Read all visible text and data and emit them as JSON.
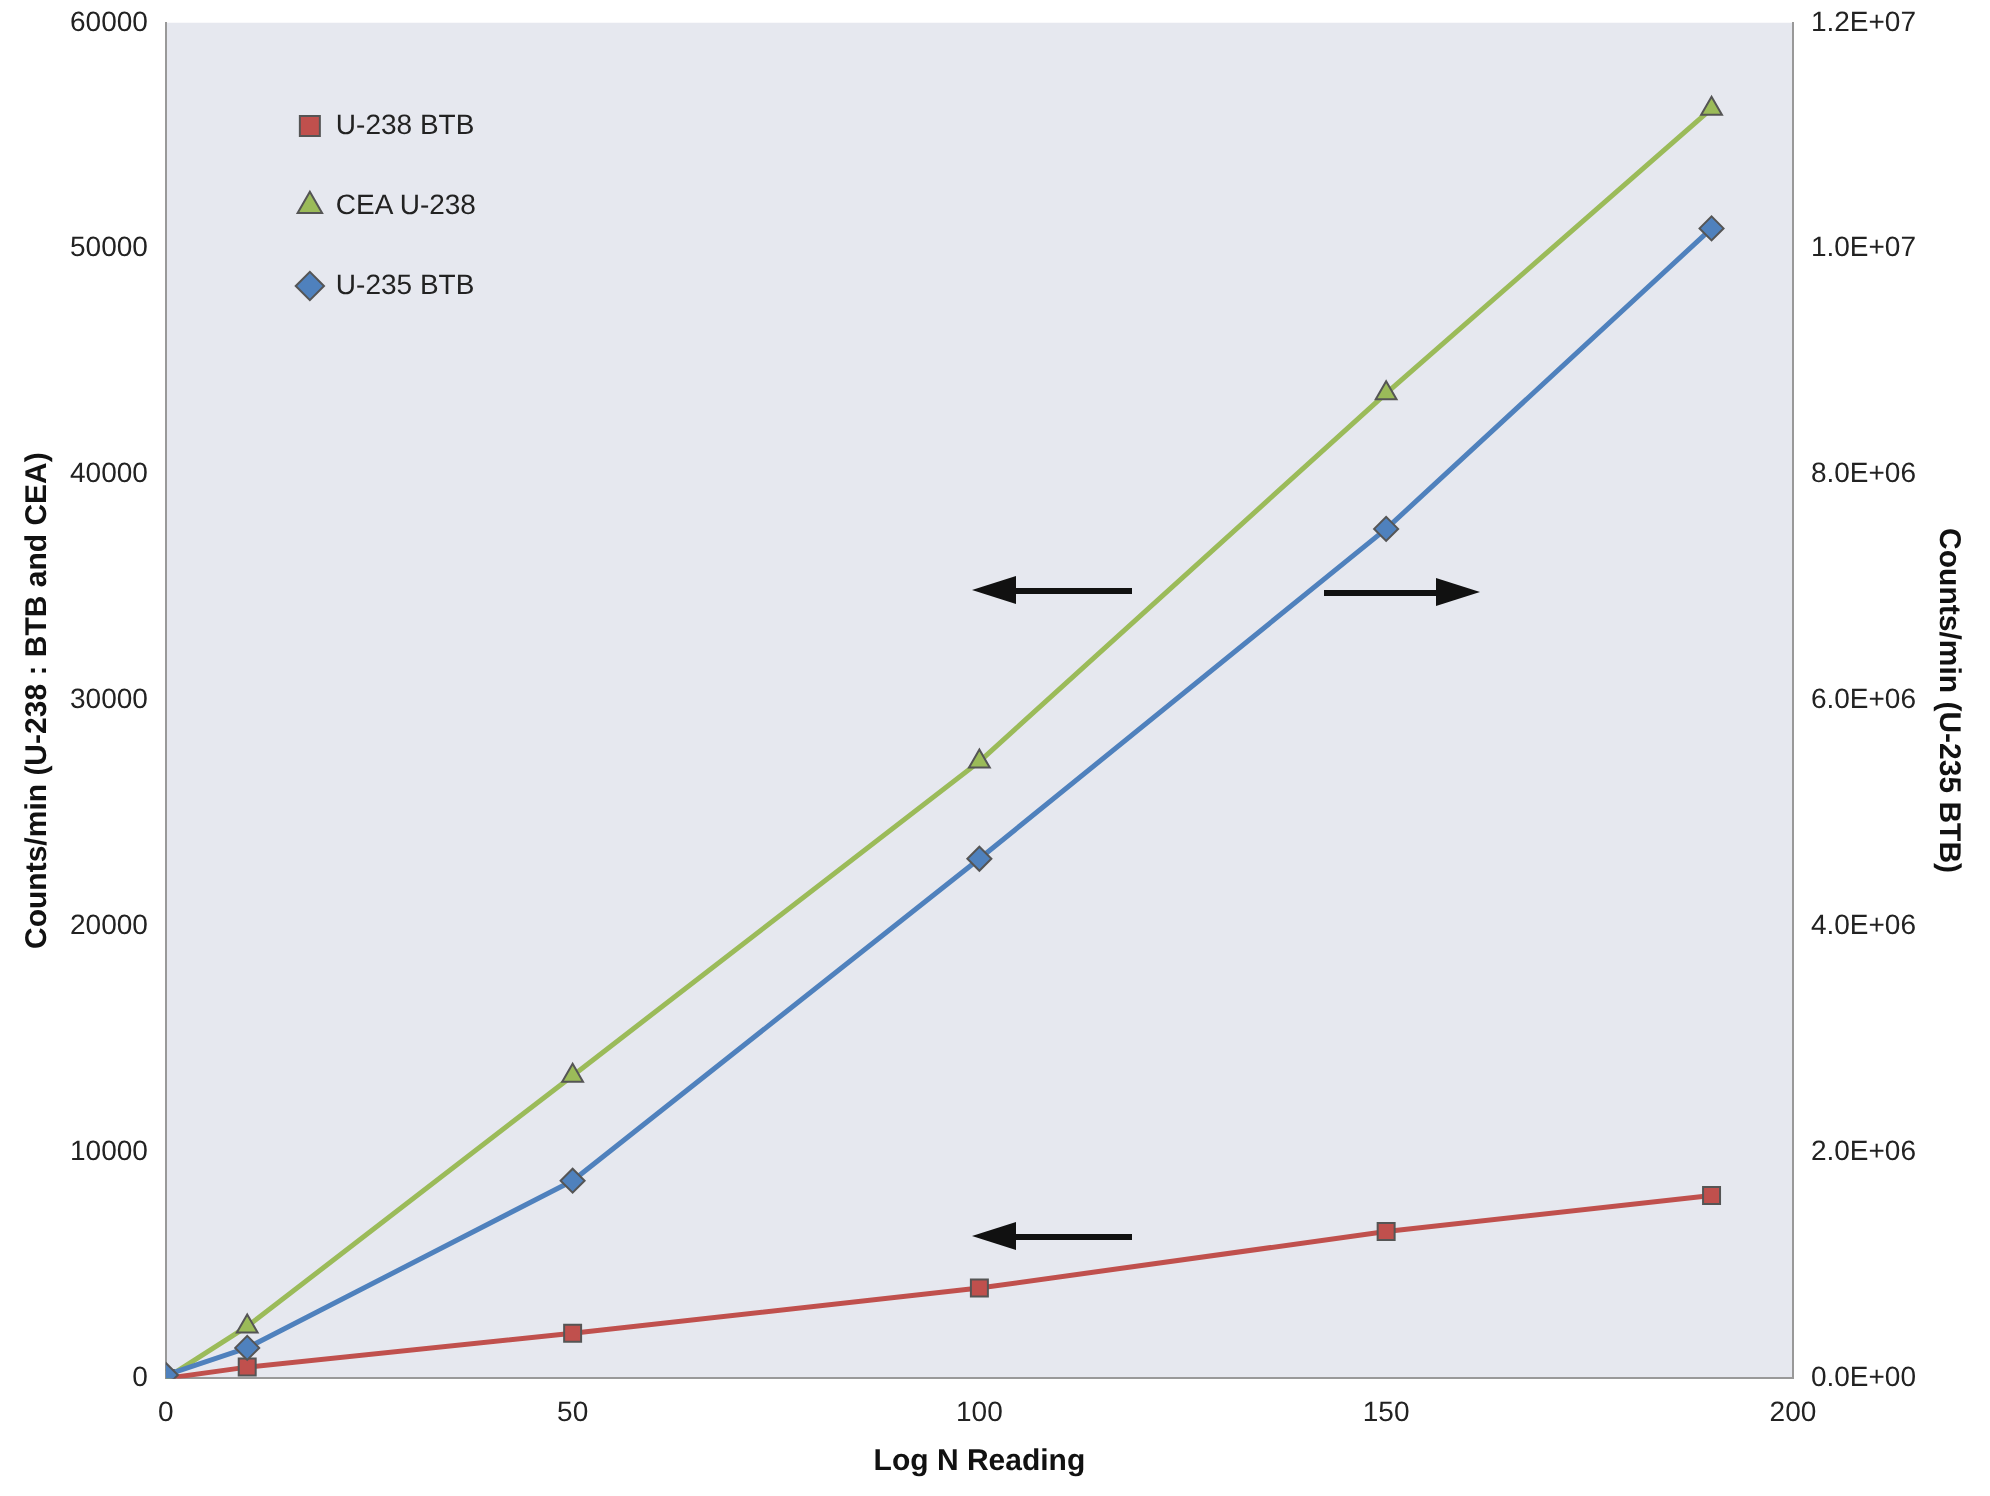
{
  "chart_data": {
    "type": "line",
    "xlabel": "Log N Reading",
    "ylabel": "Counts/min (U-238 : BTB and CEA)",
    "y2label": "Counts/min (U-235 BTB)",
    "x": [
      0,
      10,
      50,
      100,
      150,
      190
    ],
    "series": [
      {
        "name": "U-238 BTB",
        "color": "#c0504d",
        "marker": "square",
        "values": [
          0,
          500,
          2000,
          4000,
          6500,
          8100
        ]
      },
      {
        "name": "CEA U-238",
        "color": "#9bbb59",
        "marker": "triangle",
        "values": [
          0,
          2300,
          13400,
          27300,
          43600,
          56200
        ]
      },
      {
        "name": "U-235 BTB",
        "color": "#4f81bd",
        "marker": "diamond",
        "axis": "y2",
        "values": [
          30000,
          270000,
          1750000,
          4600000,
          7520000,
          10180000
        ]
      }
    ],
    "xlim": [
      0,
      200
    ],
    "xticks": [
      0,
      50,
      100,
      150,
      200
    ],
    "ylim": [
      0,
      60000
    ],
    "yticks": [
      0,
      10000,
      20000,
      30000,
      40000,
      50000,
      60000
    ],
    "y2lim": [
      0,
      12000000
    ],
    "y2ticks": [
      {
        "value": 0,
        "label": "0.0E+00"
      },
      {
        "value": 2000000,
        "label": "2.0E+06"
      },
      {
        "value": 4000000,
        "label": "4.0E+06"
      },
      {
        "value": 6000000,
        "label": "6.0E+06"
      },
      {
        "value": 8000000,
        "label": "8.0E+06"
      },
      {
        "value": 10000000,
        "label": "1.0E+07"
      },
      {
        "value": 12000000,
        "label": "1.2E+07"
      }
    ],
    "grid": false,
    "legend": "top left",
    "line_style": "solid"
  }
}
